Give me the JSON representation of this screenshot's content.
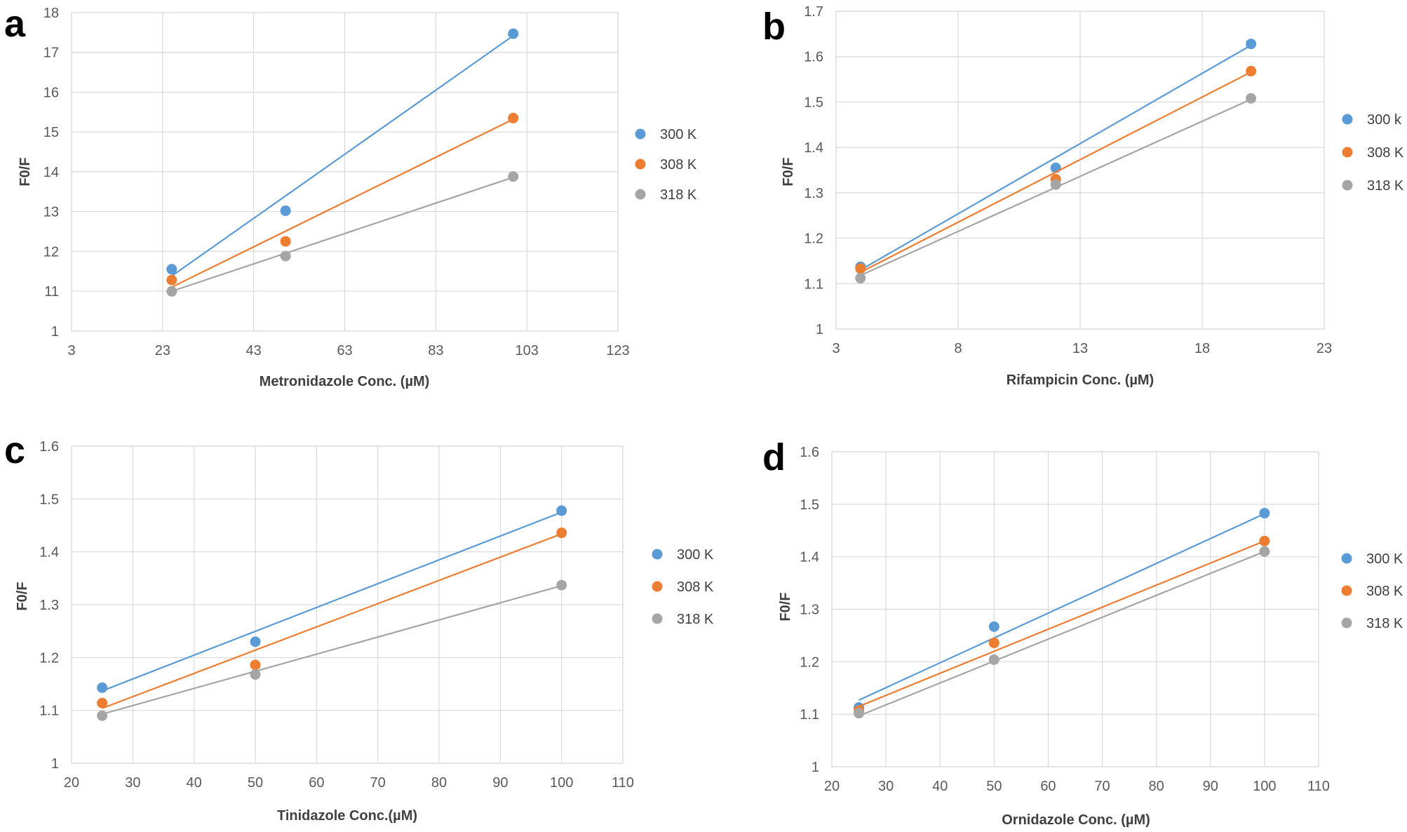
{
  "colors": {
    "s300": "#5b9bd5",
    "s308": "#ed7d31",
    "s318": "#a5a5a5"
  },
  "chart_data": [
    {
      "panel": "a",
      "type": "scatter",
      "xlabel": "Metronidazole  Conc. (µM)",
      "ylabel": "F0/F",
      "xlim": [
        3,
        123
      ],
      "xticks": [
        3,
        23,
        43,
        63,
        83,
        103,
        123
      ],
      "ylim": [
        1,
        18
      ],
      "yticks": [
        "1",
        "11",
        "12",
        "13",
        "14",
        "15",
        "16",
        "17",
        "18"
      ],
      "y_break": true,
      "legend_position": "right",
      "series": [
        {
          "name": "300 K",
          "x": [
            25,
            50,
            100
          ],
          "y": [
            11.55,
            13.02,
            17.47
          ],
          "fit": [
            [
              25,
              11.38
            ],
            [
              100,
              17.42
            ]
          ]
        },
        {
          "name": "308 K",
          "x": [
            25,
            50,
            100
          ],
          "y": [
            11.28,
            12.25,
            15.35
          ],
          "fit": [
            [
              25,
              11.1
            ],
            [
              100,
              15.32
            ]
          ]
        },
        {
          "name": "318 K",
          "x": [
            25,
            50,
            100
          ],
          "y": [
            10.95,
            11.88,
            13.88
          ],
          "fit": [
            [
              25,
              10.97
            ],
            [
              100,
              13.86
            ]
          ]
        }
      ]
    },
    {
      "panel": "b",
      "type": "scatter",
      "xlabel": "Rifampicin  Conc. (µM)",
      "ylabel": "F0/F",
      "xlim": [
        3,
        23
      ],
      "xticks": [
        3,
        8,
        13,
        18,
        23
      ],
      "ylim": [
        1,
        1.7
      ],
      "yticks": [
        "1",
        "1.1",
        "1.2",
        "1.3",
        "1.4",
        "1.5",
        "1.6",
        "1.7"
      ],
      "y_break": false,
      "legend_position": "right",
      "series": [
        {
          "name": "300 k",
          "x": [
            4,
            12,
            20
          ],
          "y": [
            1.137,
            1.355,
            1.628
          ],
          "fit": [
            [
              4,
              1.13
            ],
            [
              20,
              1.625
            ]
          ]
        },
        {
          "name": "308 K",
          "x": [
            4,
            12,
            20
          ],
          "y": [
            1.133,
            1.33,
            1.568
          ],
          "fit": [
            [
              4,
              1.125
            ],
            [
              20,
              1.566
            ]
          ]
        },
        {
          "name": "318 K",
          "x": [
            4,
            12,
            20
          ],
          "y": [
            1.112,
            1.318,
            1.508
          ],
          "fit": [
            [
              4,
              1.118
            ],
            [
              20,
              1.506
            ]
          ]
        }
      ]
    },
    {
      "panel": "c",
      "type": "scatter",
      "xlabel": "Tinidazole  Conc.(µM)",
      "ylabel": "F0/F",
      "xlim": [
        20,
        110
      ],
      "xticks": [
        20,
        30,
        40,
        50,
        60,
        70,
        80,
        90,
        100,
        110
      ],
      "ylim": [
        1,
        1.6
      ],
      "yticks": [
        "1",
        "1.1",
        "1.2",
        "1.3",
        "1.4",
        "1.5",
        "1.6"
      ],
      "y_break": false,
      "legend_position": "right",
      "series": [
        {
          "name": "300 K",
          "x": [
            25,
            50,
            100
          ],
          "y": [
            1.143,
            1.23,
            1.478
          ],
          "fit": [
            [
              25,
              1.137
            ],
            [
              100,
              1.475
            ]
          ]
        },
        {
          "name": "308 K",
          "x": [
            25,
            50,
            100
          ],
          "y": [
            1.114,
            1.186,
            1.436
          ],
          "fit": [
            [
              25,
              1.104
            ],
            [
              100,
              1.434
            ]
          ]
        },
        {
          "name": "318 K",
          "x": [
            25,
            50,
            100
          ],
          "y": [
            1.09,
            1.168,
            1.337
          ],
          "fit": [
            [
              25,
              1.093
            ],
            [
              100,
              1.336
            ]
          ]
        }
      ]
    },
    {
      "panel": "d",
      "type": "scatter",
      "xlabel": "Ornidazole  Conc. (µM)",
      "ylabel": "F0/F",
      "xlim": [
        20,
        110
      ],
      "xticks": [
        20,
        30,
        40,
        50,
        60,
        70,
        80,
        90,
        100,
        110
      ],
      "ylim": [
        1,
        1.6
      ],
      "yticks": [
        "1",
        "1.1",
        "1.2",
        "1.3",
        "1.4",
        "1.5",
        "1.6"
      ],
      "y_break": false,
      "legend_position": "right",
      "series": [
        {
          "name": "300 K",
          "x": [
            25,
            50,
            100
          ],
          "y": [
            1.113,
            1.267,
            1.483
          ],
          "fit": [
            [
              25,
              1.127
            ],
            [
              100,
              1.482
            ]
          ]
        },
        {
          "name": "308 K",
          "x": [
            25,
            50,
            100
          ],
          "y": [
            1.107,
            1.236,
            1.43
          ],
          "fit": [
            [
              25,
              1.115
            ],
            [
              100,
              1.43
            ]
          ]
        },
        {
          "name": "318 K",
          "x": [
            25,
            50,
            100
          ],
          "y": [
            1.102,
            1.204,
            1.41
          ],
          "fit": [
            [
              25,
              1.097
            ],
            [
              100,
              1.41
            ]
          ]
        }
      ]
    }
  ]
}
